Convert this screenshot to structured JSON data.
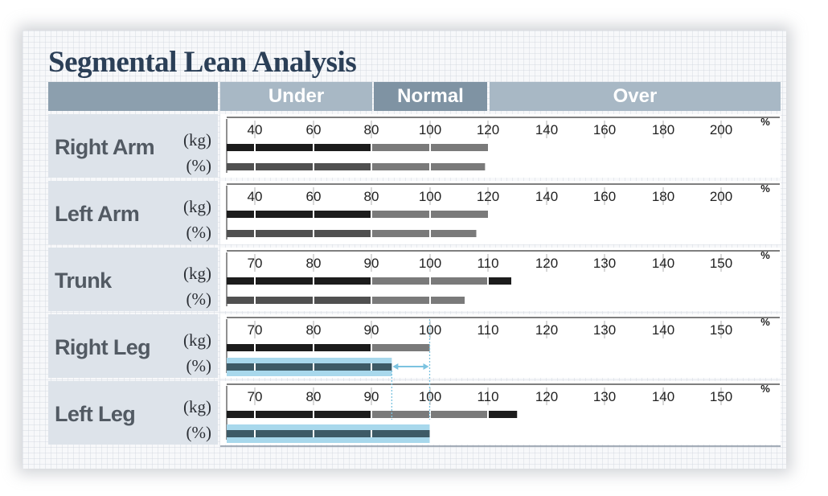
{
  "title": "Segmental Lean Analysis",
  "headers": {
    "blank": "",
    "under": "Under",
    "normal": "Normal",
    "over": "Over"
  },
  "colors": {
    "bar_primary": "#1c1c1c",
    "bar_normal": "#7a7a7a",
    "bar_pct": "#505050",
    "bar_highlight": "#a8d8ec",
    "highlight_line": "#7cc3e0"
  },
  "chart_data": {
    "type": "bar",
    "title": "Segmental Lean Analysis",
    "range_labels": [
      "Under",
      "Normal",
      "Over"
    ],
    "percent_symbol": "%",
    "segments": [
      {
        "name": "Right Arm",
        "unit_kg": "(kg)",
        "unit_pct": "(%)",
        "ticks": [
          "40",
          "60",
          "80",
          "100",
          "120",
          "140",
          "160",
          "180",
          "200"
        ],
        "kg_value": 120,
        "pct_value": 119,
        "highlight": false
      },
      {
        "name": "Left Arm",
        "unit_kg": "(kg)",
        "unit_pct": "(%)",
        "ticks": [
          "40",
          "60",
          "80",
          "100",
          "120",
          "140",
          "160",
          "180",
          "200"
        ],
        "kg_value": 120,
        "pct_value": 116,
        "highlight": false
      },
      {
        "name": "Trunk",
        "unit_kg": "(kg)",
        "unit_pct": "(%)",
        "ticks": [
          "70",
          "80",
          "90",
          "100",
          "110",
          "120",
          "130",
          "140",
          "150"
        ],
        "kg_value": 114,
        "pct_value": 106,
        "highlight": false
      },
      {
        "name": "Right Leg",
        "unit_kg": "(kg)",
        "unit_pct": "(%)",
        "ticks": [
          "70",
          "80",
          "90",
          "100",
          "110",
          "120",
          "130",
          "140",
          "150"
        ],
        "kg_value": 100,
        "pct_value": 93.5,
        "highlight": true
      },
      {
        "name": "Left Leg",
        "unit_kg": "(kg)",
        "unit_pct": "(%)",
        "ticks": [
          "70",
          "80",
          "90",
          "100",
          "110",
          "120",
          "130",
          "140",
          "150"
        ],
        "kg_value": 115,
        "pct_value": 100,
        "highlight": true
      }
    ]
  }
}
